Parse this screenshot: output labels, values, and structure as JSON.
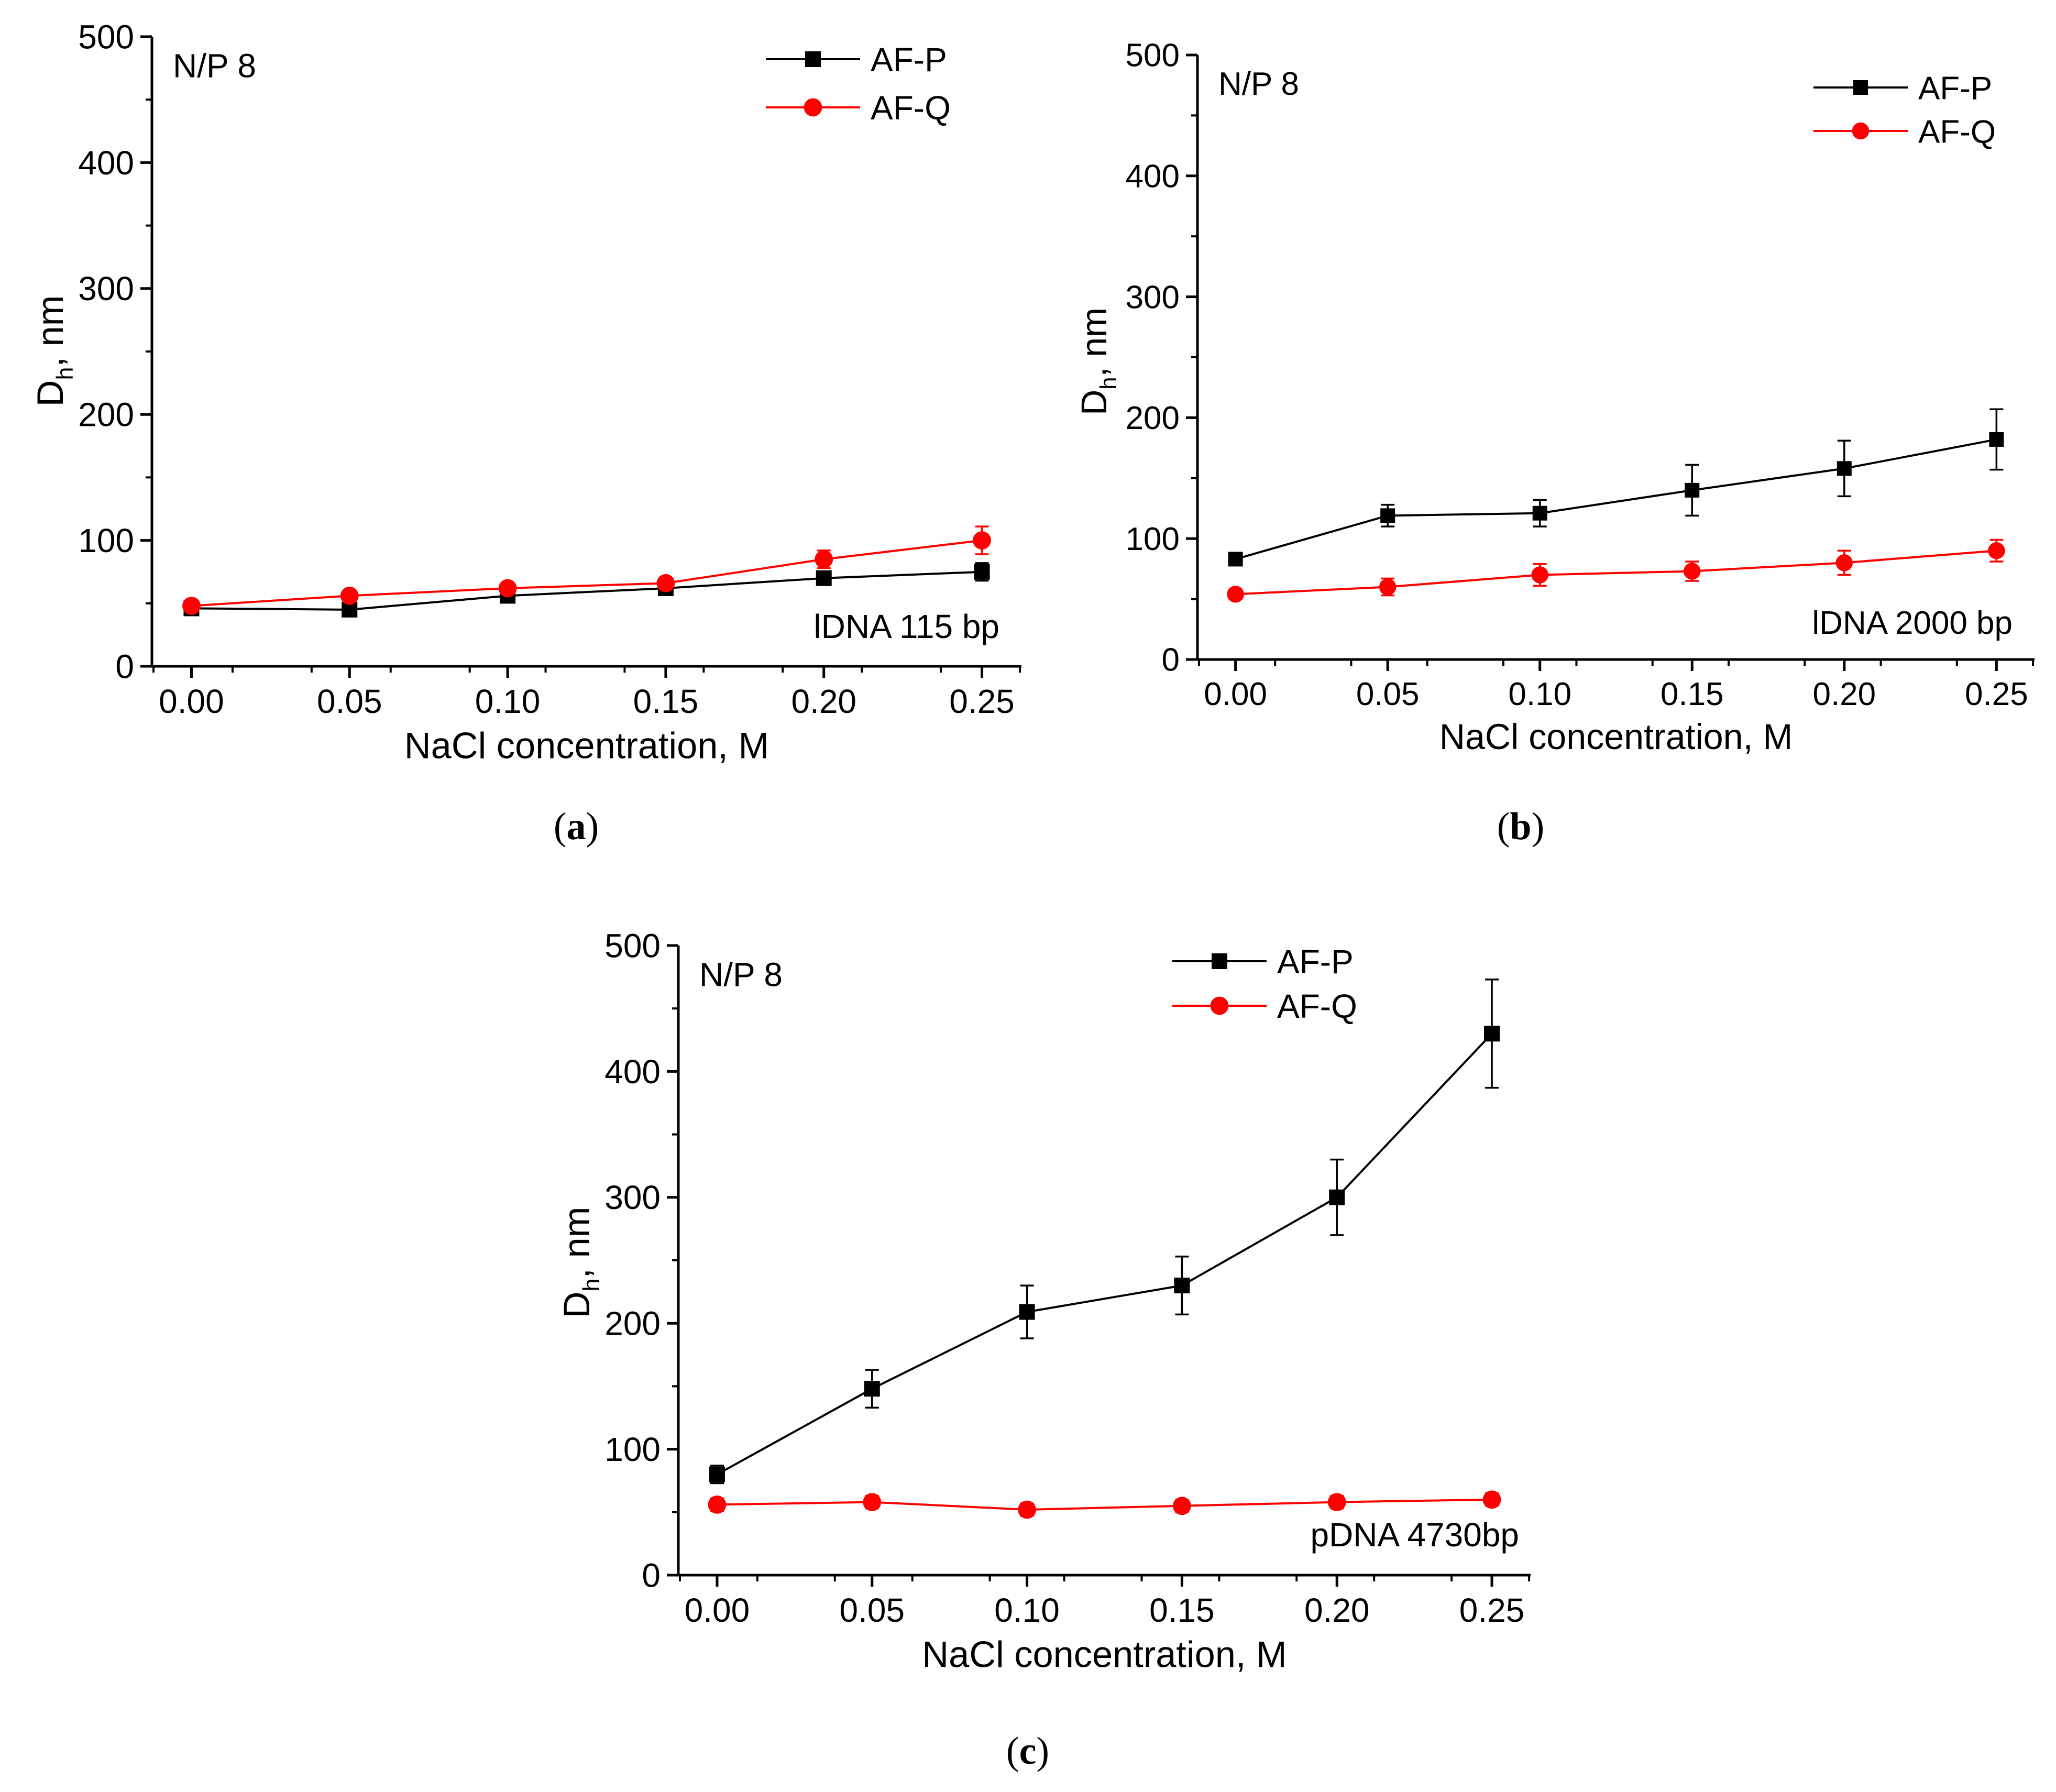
{
  "chart_data": [
    {
      "type": "line",
      "panel": "a",
      "caption_letter": "a",
      "annotation": "N/P 8",
      "sample_label": "lDNA 115 bp",
      "xlabel": "NaCl concentration, M",
      "ylabel_main": "D",
      "ylabel_sub": "h",
      "ylabel_rest": ", nm",
      "xlim": [
        -0.0125,
        0.2625
      ],
      "ylim": [
        0,
        500
      ],
      "x": [
        0.0,
        0.05,
        0.1,
        0.15,
        0.2,
        0.25
      ],
      "x_tick_labels": [
        "0.00",
        "0.05",
        "0.10",
        "0.15",
        "0.20",
        "0.25"
      ],
      "y_ticks": [
        0,
        100,
        200,
        300,
        400,
        500
      ],
      "y_tick_labels": [
        "0",
        "100",
        "200",
        "300",
        "400",
        "500"
      ],
      "series": [
        {
          "name": "AF-P",
          "color": "#000000",
          "marker": "square",
          "values": [
            46,
            45,
            56,
            62,
            70,
            75
          ],
          "errors": [
            3,
            3,
            3,
            3,
            5,
            7
          ]
        },
        {
          "name": "AF-Q",
          "color": "#ff0000",
          "marker": "circle",
          "values": [
            48,
            56,
            62,
            66,
            85,
            100
          ],
          "errors": [
            3,
            3,
            4,
            4,
            7,
            11
          ]
        }
      ],
      "legend_position": "top-right"
    },
    {
      "type": "line",
      "panel": "b",
      "caption_letter": "b",
      "annotation": "N/P 8",
      "sample_label": "lDNA 2000 bp",
      "xlabel": "NaCl concentration, M",
      "ylabel_main": "D",
      "ylabel_sub": "h",
      "ylabel_rest": ", nm",
      "xlim": [
        -0.0125,
        0.2625
      ],
      "ylim": [
        0,
        500
      ],
      "x": [
        0.0,
        0.05,
        0.1,
        0.15,
        0.2,
        0.25
      ],
      "x_tick_labels": [
        "0.00",
        "0.05",
        "0.10",
        "0.15",
        "0.20",
        "0.25"
      ],
      "y_ticks": [
        0,
        100,
        200,
        300,
        400,
        500
      ],
      "y_tick_labels": [
        "0",
        "100",
        "200",
        "300",
        "400",
        "500"
      ],
      "series": [
        {
          "name": "AF-P",
          "color": "#000000",
          "marker": "square",
          "values": [
            83,
            119,
            121,
            140,
            158,
            182
          ],
          "errors": [
            5,
            9,
            11,
            21,
            23,
            25
          ]
        },
        {
          "name": "AF-Q",
          "color": "#ff0000",
          "marker": "circle",
          "values": [
            54,
            60,
            70,
            73,
            80,
            90
          ],
          "errors": [
            4,
            7,
            9,
            8,
            10,
            9
          ]
        }
      ],
      "legend_position": "top-right"
    },
    {
      "type": "line",
      "panel": "c",
      "caption_letter": "c",
      "annotation": "N/P 8",
      "sample_label": "pDNA 4730bp",
      "xlabel": "NaCl concentration, M",
      "ylabel_main": "D",
      "ylabel_sub": "h",
      "ylabel_rest": ", nm",
      "xlim": [
        -0.0125,
        0.2625
      ],
      "ylim": [
        0,
        500
      ],
      "x": [
        0.0,
        0.05,
        0.1,
        0.15,
        0.2,
        0.25
      ],
      "x_tick_labels": [
        "0.00",
        "0.05",
        "0.10",
        "0.15",
        "0.20",
        "0.25"
      ],
      "y_ticks": [
        0,
        100,
        200,
        300,
        400,
        500
      ],
      "y_tick_labels": [
        "0",
        "100",
        "200",
        "300",
        "400",
        "500"
      ],
      "series": [
        {
          "name": "AF-P",
          "color": "#000000",
          "marker": "square",
          "values": [
            80,
            148,
            209,
            230,
            300,
            430
          ],
          "errors": [
            7,
            15,
            21,
            23,
            30,
            43
          ]
        },
        {
          "name": "AF-Q",
          "color": "#ff0000",
          "marker": "circle",
          "values": [
            56,
            58,
            52,
            55,
            58,
            60
          ],
          "errors": [
            5,
            5,
            5,
            5,
            5,
            5
          ]
        }
      ],
      "legend_position": "top-center"
    }
  ]
}
